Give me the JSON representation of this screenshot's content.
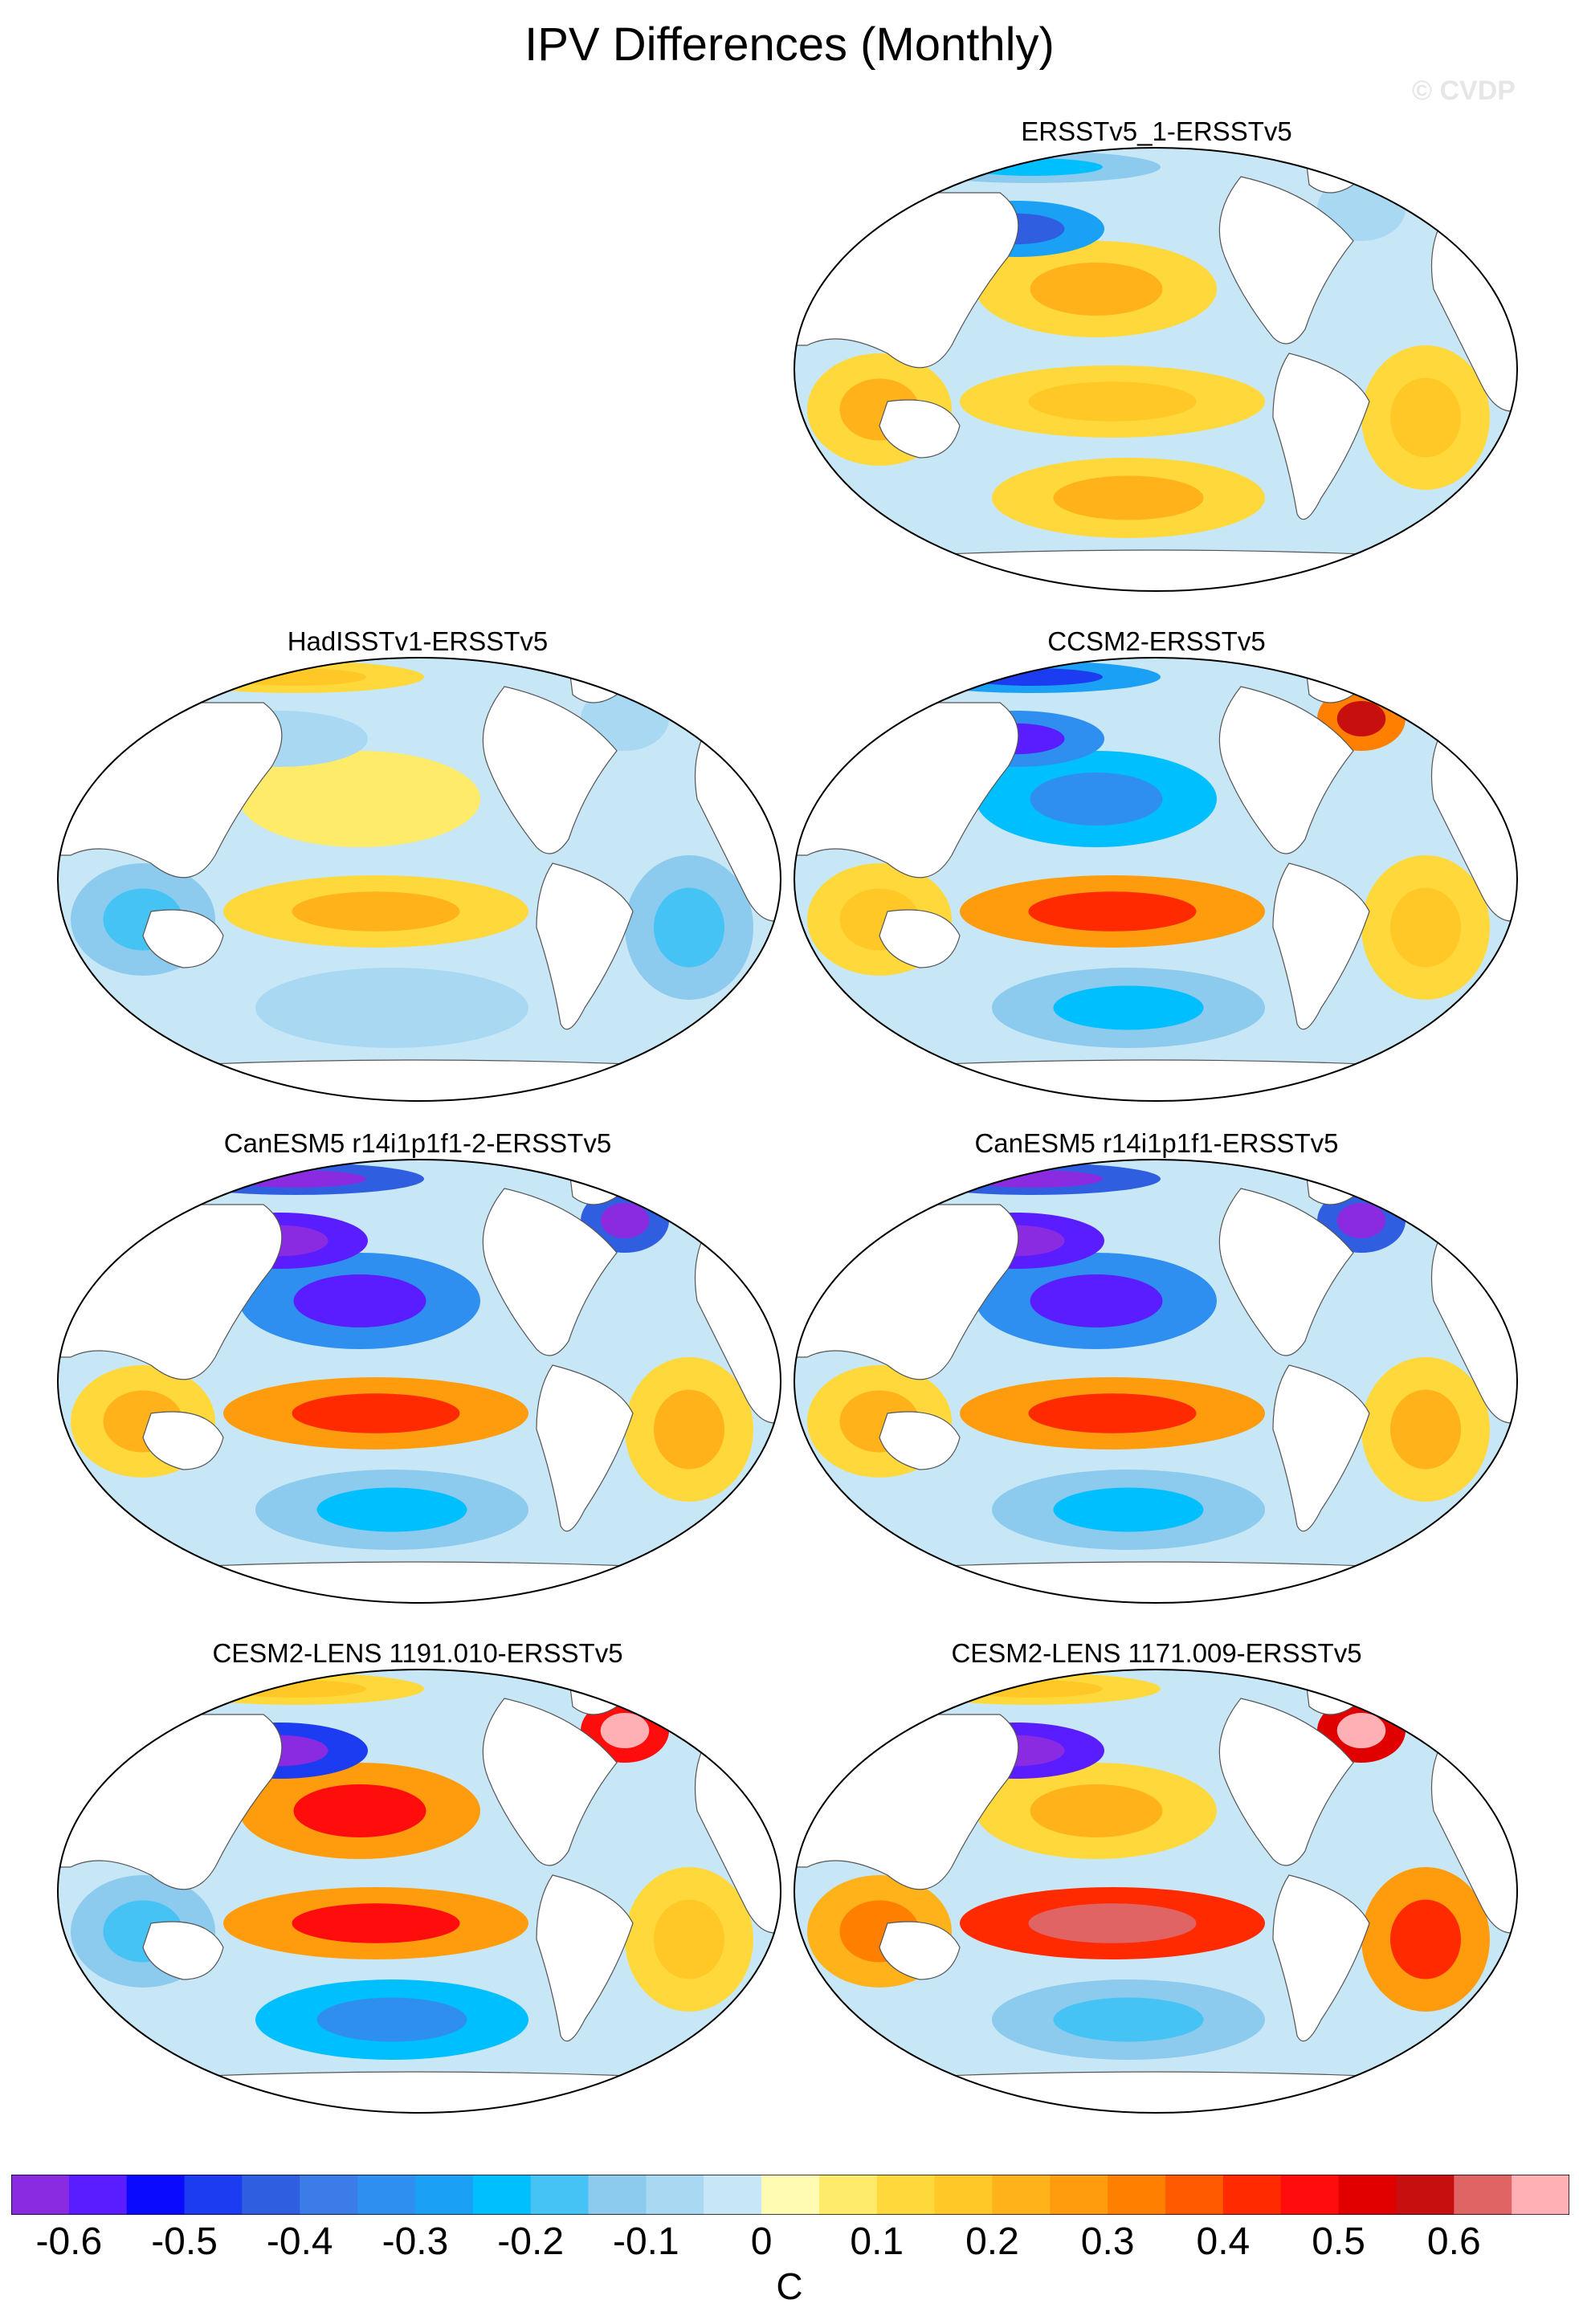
{
  "figure": {
    "title": "IPV Differences (Monthly)",
    "watermark": "© CVDP",
    "units": "C"
  },
  "panels": [
    {
      "id": "p1",
      "title": "ERSSTv5_1-ERSSTv5",
      "pattern": {
        "np": 0.15,
        "npa": -0.25,
        "trop": 0.1,
        "sp": 0.15,
        "ind": 0.15,
        "atl": 0.12,
        "ntl": -0.05,
        "arc": -0.15
      }
    },
    {
      "id": "p2",
      "title": "HadISSTv1-ERSSTv5",
      "pattern": {
        "np": 0.05,
        "npa": -0.05,
        "trop": 0.15,
        "sp": -0.05,
        "ind": -0.1,
        "atl": -0.1,
        "ntl": -0.05,
        "arc": 0.1
      }
    },
    {
      "id": "p3",
      "title": "CCSM2-ERSSTv5",
      "pattern": {
        "np": -0.2,
        "npa": -0.35,
        "trop": 0.25,
        "sp": -0.15,
        "ind": 0.1,
        "atl": 0.1,
        "ntl": 0.35,
        "arc": -0.3
      }
    },
    {
      "id": "p4",
      "title": "CanESM5 r14i1p1f1-2-ERSSTv5",
      "pattern": {
        "np": -0.35,
        "npa": -0.6,
        "trop": 0.25,
        "sp": -0.15,
        "ind": 0.15,
        "atl": 0.15,
        "ntl": -0.4,
        "arc": -0.4
      }
    },
    {
      "id": "p5",
      "title": "CanESM5 r14i1p1f1-ERSSTv5",
      "pattern": {
        "np": -0.35,
        "npa": -0.6,
        "trop": 0.25,
        "sp": -0.15,
        "ind": 0.15,
        "atl": 0.15,
        "ntl": -0.4,
        "arc": -0.4
      }
    },
    {
      "id": "p6",
      "title": "CESM2-LENS 1191.010-ERSSTv5",
      "pattern": {
        "np": 0.3,
        "npa": -0.45,
        "trop": 0.3,
        "sp": -0.2,
        "ind": -0.1,
        "atl": 0.1,
        "ntl": 0.45,
        "arc": 0.1
      }
    },
    {
      "id": "p7",
      "title": "CESM2-LENS 1171.009-ERSSTv5",
      "pattern": {
        "np": 0.15,
        "npa": -0.55,
        "trop": 0.4,
        "sp": -0.1,
        "ind": 0.2,
        "atl": 0.25,
        "ntl": 0.5,
        "arc": 0.1
      }
    }
  ],
  "colorbar": {
    "colors": [
      "#8a2be2",
      "#5a1dff",
      "#0a0aff",
      "#1b3cf0",
      "#2f5fe0",
      "#3b7ce8",
      "#2f8ff0",
      "#1aa0f5",
      "#00bfff",
      "#45c3f5",
      "#8ccaee",
      "#a9d8f3",
      "#c8e7f6",
      "#fffbb3",
      "#ffeb6a",
      "#ffd93b",
      "#ffc826",
      "#ffb21a",
      "#ff9c0d",
      "#ff7f00",
      "#ff5a00",
      "#ff2a00",
      "#ff0c0c",
      "#e00000",
      "#c80f0f",
      "#e06464",
      "#ffb0b4"
    ],
    "ticks": [
      "-0.6",
      "-0.5",
      "-0.4",
      "-0.3",
      "-0.2",
      "-0.1",
      "0",
      "0.1",
      "0.2",
      "0.3",
      "0.4",
      "0.5",
      "0.6"
    ]
  }
}
